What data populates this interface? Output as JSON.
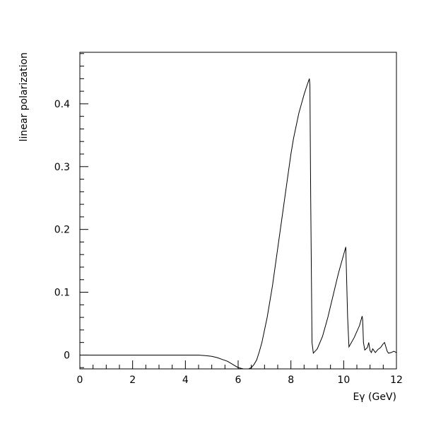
{
  "chart_data": {
    "type": "line",
    "title": "",
    "xlabel": "Eγ (GeV)",
    "ylabel": "linear polarization",
    "xlim": [
      0,
      12
    ],
    "ylim": [
      -0.022,
      0.482
    ],
    "xticks": [
      0,
      2,
      4,
      6,
      8,
      10,
      12
    ],
    "xtick_labels": [
      "0",
      "2",
      "4",
      "6",
      "8",
      "10",
      "12"
    ],
    "yticks": [
      0,
      0.1,
      0.2,
      0.3,
      0.4
    ],
    "ytick_labels": [
      "0",
      "0.1",
      "0.2",
      "0.3",
      "0.4"
    ],
    "grid": false,
    "legend": "none",
    "line_color": "#000000",
    "series": [
      {
        "x": [
          0,
          1,
          2,
          3,
          4,
          4.5,
          4.8,
          5.0,
          5.2,
          5.4,
          5.6,
          5.8,
          6.0,
          6.1,
          6.2,
          6.3,
          6.4,
          6.5,
          6.6,
          6.7,
          6.8,
          6.9,
          7.0,
          7.1,
          7.2,
          7.3,
          7.4,
          7.5,
          7.6,
          7.7,
          7.8,
          7.9,
          8.0,
          8.1,
          8.2,
          8.3,
          8.4,
          8.5,
          8.6,
          8.7,
          8.72,
          8.75,
          8.8,
          8.85,
          9.0,
          9.2,
          9.4,
          9.6,
          9.8,
          10.0,
          10.08,
          10.15,
          10.2,
          10.4,
          10.6,
          10.7,
          10.72,
          10.75,
          10.8,
          10.9,
          10.95,
          11.0,
          11.05,
          11.1,
          11.2,
          11.3,
          11.4,
          11.5,
          11.55,
          11.6,
          11.65,
          11.7,
          11.8,
          11.9,
          12.0
        ],
        "y": [
          0,
          0,
          0,
          0,
          0,
          0,
          -0.001,
          -0.002,
          -0.004,
          -0.007,
          -0.01,
          -0.015,
          -0.02,
          -0.021,
          -0.022,
          -0.022,
          -0.022,
          -0.02,
          -0.015,
          -0.008,
          0.005,
          0.02,
          0.04,
          0.06,
          0.085,
          0.11,
          0.14,
          0.17,
          0.2,
          0.23,
          0.26,
          0.29,
          0.32,
          0.345,
          0.365,
          0.385,
          0.4,
          0.415,
          0.428,
          0.44,
          0.43,
          0.25,
          0.02,
          0.003,
          0.01,
          0.03,
          0.06,
          0.095,
          0.13,
          0.16,
          0.172,
          0.06,
          0.013,
          0.028,
          0.047,
          0.062,
          0.056,
          0.02,
          0.008,
          0.012,
          0.02,
          0.007,
          0.004,
          0.01,
          0.004,
          0.009,
          0.012,
          0.018,
          0.02,
          0.013,
          0.006,
          0.003,
          0.004,
          0.006,
          0.004
        ]
      }
    ]
  }
}
